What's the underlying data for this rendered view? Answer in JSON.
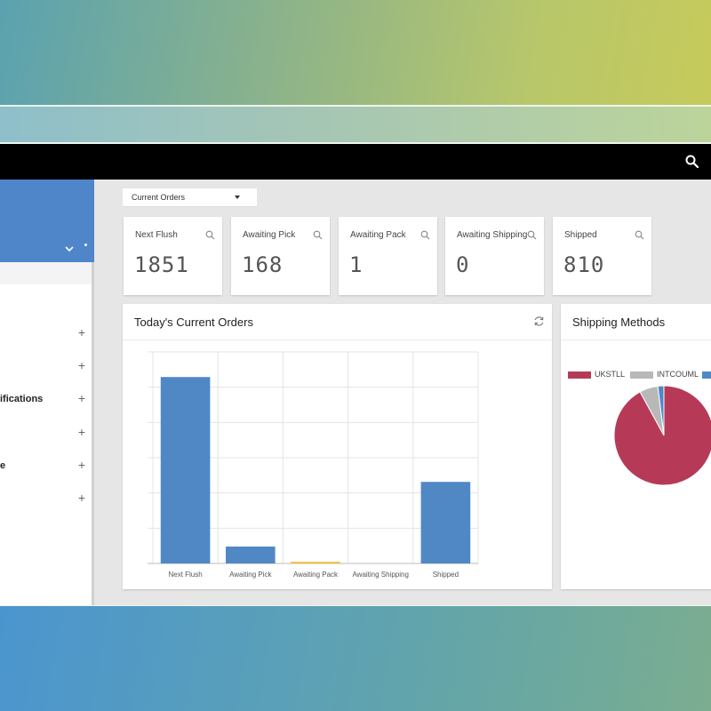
{
  "header": {
    "search_icon": "search-icon"
  },
  "filter": {
    "selected": "Current Orders"
  },
  "sidebar": {
    "items": [
      {
        "label": ""
      },
      {
        "label": ""
      },
      {
        "label": "ifications"
      },
      {
        "label": ""
      },
      {
        "label": "e"
      },
      {
        "label": ""
      }
    ]
  },
  "stats": [
    {
      "title": "Next Flush",
      "value": "1851"
    },
    {
      "title": "Awaiting Pick",
      "value": "168"
    },
    {
      "title": "Awaiting Pack",
      "value": "1"
    },
    {
      "title": "Awaiting Shipping",
      "value": "0"
    },
    {
      "title": "Shipped",
      "value": "810"
    }
  ],
  "orders_panel": {
    "title": "Today's Current Orders"
  },
  "shipping_panel": {
    "title": "Shipping Methods"
  },
  "colors": {
    "bar": "#5088c6",
    "pack_bar": "#f0c64a",
    "pie_main": "#b63a58",
    "pie_grey": "#b8b8b8",
    "pie_blue": "#5088c6"
  },
  "chart_data": [
    {
      "type": "bar",
      "categories": [
        "Next Flush",
        "Awaiting Pick",
        "Awaiting Pack",
        "Awaiting Shipping",
        "Shipped"
      ],
      "values": [
        1851,
        168,
        1,
        0,
        810
      ],
      "title": "Today's Current Orders",
      "xlabel": "",
      "ylabel": "",
      "ylim": [
        0,
        2100
      ],
      "grid": true
    },
    {
      "type": "pie",
      "title": "Shipping Methods",
      "labels": [
        "UKSTLL",
        "INTCOUML",
        ""
      ],
      "values": [
        92,
        6,
        2
      ],
      "legend": "top"
    }
  ]
}
